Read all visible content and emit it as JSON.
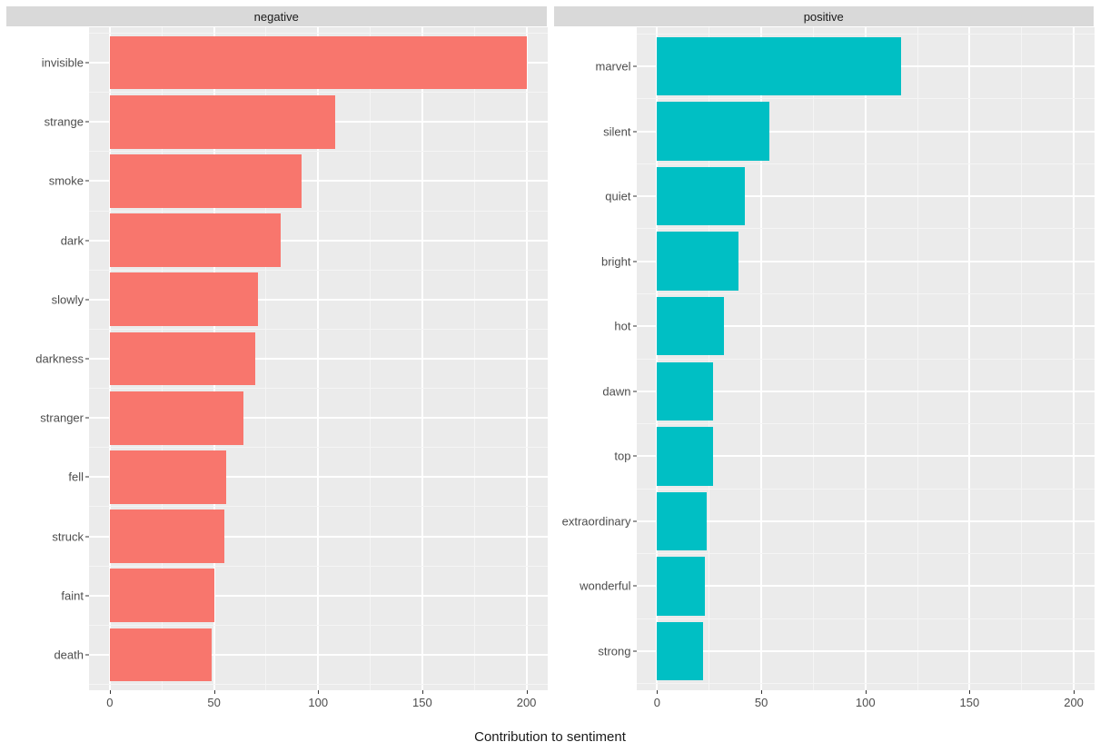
{
  "chart": {
    "type": "bar",
    "orientation": "horizontal",
    "xlabel": "Contribution to sentiment",
    "xlim": [
      -10,
      210
    ],
    "xticks": [
      0,
      50,
      100,
      150,
      200
    ],
    "xminor": [
      25,
      75,
      125,
      175
    ],
    "background_color": "#ffffff",
    "panel_bg": "#ebebeb",
    "grid_major_color": "#ffffff",
    "grid_minor_color": "#f5f5f5",
    "strip_bg": "#d9d9d9",
    "tick_color": "#333333",
    "text_color": "#4d4d4d",
    "strip_text_color": "#1a1a1a",
    "axis_title_color": "#1a1a1a",
    "bar_rel_height": 0.9,
    "label_fontsize": 13,
    "axis_title_fontsize": 15,
    "facets": [
      {
        "title": "negative",
        "bar_color": "#f8766d",
        "items": [
          {
            "label": "invisible",
            "value": 200
          },
          {
            "label": "strange",
            "value": 108
          },
          {
            "label": "smoke",
            "value": 92
          },
          {
            "label": "dark",
            "value": 82
          },
          {
            "label": "slowly",
            "value": 71
          },
          {
            "label": "darkness",
            "value": 70
          },
          {
            "label": "stranger",
            "value": 64
          },
          {
            "label": "fell",
            "value": 56
          },
          {
            "label": "struck",
            "value": 55
          },
          {
            "label": "faint",
            "value": 50
          },
          {
            "label": "death",
            "value": 49
          }
        ]
      },
      {
        "title": "positive",
        "bar_color": "#00bfc4",
        "items": [
          {
            "label": "marvel",
            "value": 117
          },
          {
            "label": "silent",
            "value": 54
          },
          {
            "label": "quiet",
            "value": 42
          },
          {
            "label": "bright",
            "value": 39
          },
          {
            "label": "hot",
            "value": 32
          },
          {
            "label": "dawn",
            "value": 27
          },
          {
            "label": "top",
            "value": 27
          },
          {
            "label": "extraordinary",
            "value": 24
          },
          {
            "label": "wonderful",
            "value": 23
          },
          {
            "label": "strong",
            "value": 22
          }
        ]
      }
    ]
  }
}
